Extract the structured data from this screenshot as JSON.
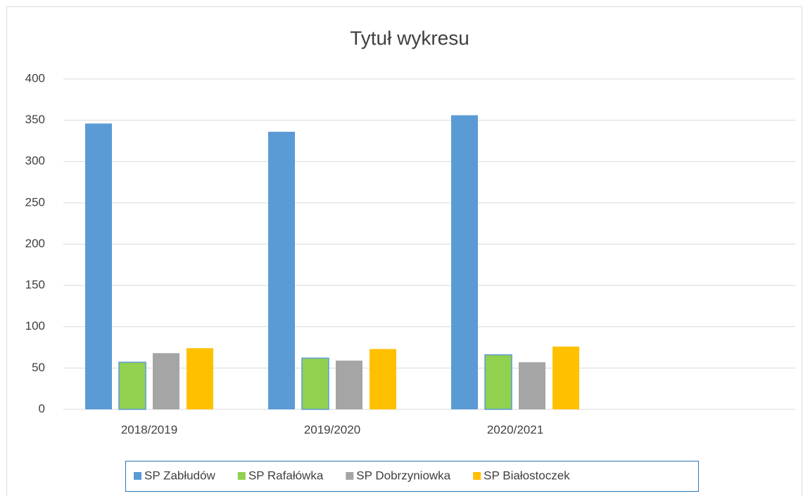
{
  "chart_data": {
    "type": "bar",
    "title": "Tytuł wykresu",
    "categories": [
      "2018/2019",
      "2019/2020",
      "2020/2021",
      null
    ],
    "series": [
      {
        "name": "SP Zabłudów",
        "color": "#5b9bd5",
        "values": [
          346,
          336,
          356,
          null
        ]
      },
      {
        "name": "SP Rafałówka",
        "color": "#92d050",
        "values": [
          57,
          62,
          66,
          null
        ]
      },
      {
        "name": "SP Dobrzyniowka",
        "color": "#a5a5a5",
        "values": [
          68,
          59,
          57,
          null
        ]
      },
      {
        "name": "SP Białostoczek",
        "color": "#ffc000",
        "values": [
          74,
          73,
          76,
          null
        ]
      }
    ],
    "ylim": [
      0,
      400
    ],
    "yticks": [
      0,
      50,
      100,
      150,
      200,
      250,
      300,
      350,
      400
    ],
    "grid": true,
    "legend": "bottom"
  }
}
